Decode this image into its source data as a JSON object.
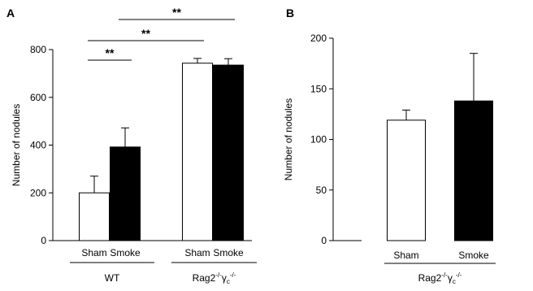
{
  "chart_data": [
    {
      "panel_label": "A",
      "type": "bar",
      "ylabel": "Number of nodules",
      "ylim": [
        0,
        800
      ],
      "yticks": [
        0,
        200,
        400,
        600,
        800
      ],
      "groups": [
        "WT",
        "Rag2-/-γc-/-"
      ],
      "categories": [
        "Sham",
        "Smoke",
        "Sham",
        "Smoke"
      ],
      "values": [
        200,
        392,
        743,
        735
      ],
      "errors": [
        70,
        80,
        20,
        27
      ],
      "fills": [
        "#ffffff",
        "#000000",
        "#ffffff",
        "#000000"
      ],
      "significance": [
        {
          "from": 0,
          "to": 1,
          "label": "**"
        },
        {
          "from": 0,
          "to": 2,
          "label": "**"
        },
        {
          "from": 1,
          "to": 3,
          "label": "**"
        }
      ]
    },
    {
      "panel_label": "B",
      "type": "bar",
      "ylabel": "Number of nodules",
      "ylim": [
        0,
        200
      ],
      "yticks": [
        0,
        50,
        100,
        150,
        200
      ],
      "groups": [
        "Rag2-/-γc-/-"
      ],
      "categories": [
        "Sham",
        "Smoke"
      ],
      "values": [
        119,
        138
      ],
      "errors": [
        10,
        47
      ],
      "fills": [
        "#ffffff",
        "#000000"
      ],
      "significance": []
    }
  ]
}
